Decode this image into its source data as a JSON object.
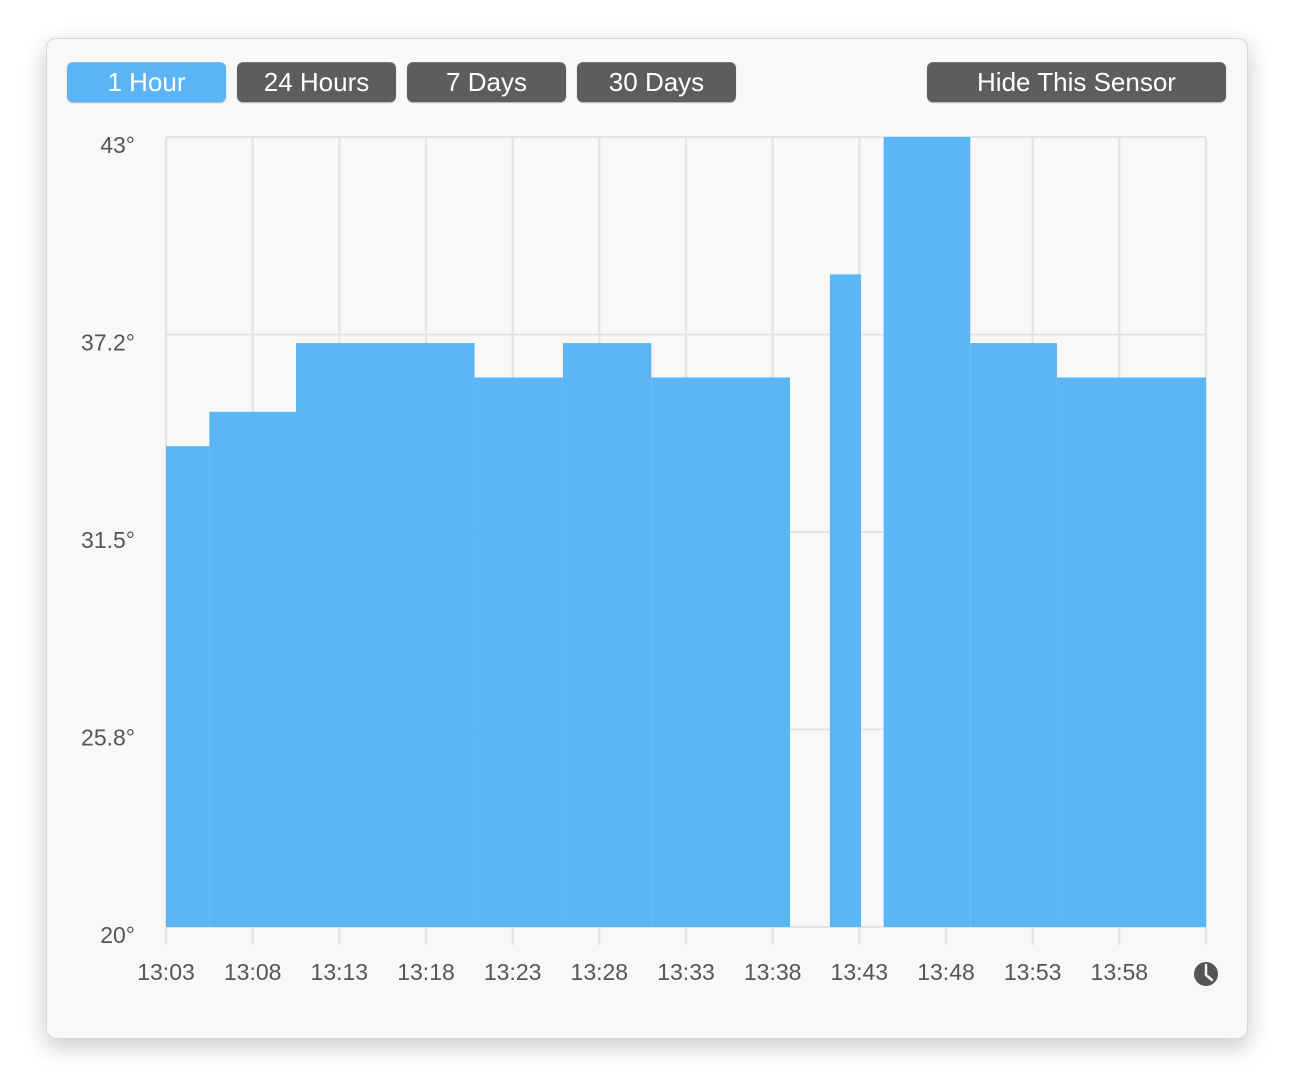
{
  "buttons": [
    "1 Hour",
    "24 Hours",
    "7 Days",
    "30 Days"
  ],
  "hide_button": "Hide This Sensor",
  "chart_data": {
    "type": "step-area",
    "color": "#5bb6f5",
    "series": [
      {
        "x_start": [
          783,
          785.5,
          790.5,
          800.8,
          805.9,
          811,
          821.3,
          824.4,
          829.4,
          834.4
        ],
        "x_end": [
          785.5,
          790.5,
          800.8,
          805.9,
          811,
          819,
          823.1,
          829.4,
          834.4,
          843
        ],
        "values": [
          34,
          35,
          37,
          36,
          37,
          36,
          39,
          43,
          37,
          36
        ]
      }
    ],
    "xlim": [
      783,
      843
    ],
    "ylim": [
      20,
      43
    ],
    "xticks": [
      {
        "value": 783,
        "label": "13:03"
      },
      {
        "value": 788,
        "label": "13:08"
      },
      {
        "value": 793,
        "label": "13:13"
      },
      {
        "value": 798,
        "label": "13:18"
      },
      {
        "value": 803,
        "label": "13:23"
      },
      {
        "value": 808,
        "label": "13:28"
      },
      {
        "value": 813,
        "label": "13:33"
      },
      {
        "value": 818,
        "label": "13:38"
      },
      {
        "value": 823,
        "label": "13:43"
      },
      {
        "value": 828,
        "label": "13:48"
      },
      {
        "value": 833,
        "label": "13:53"
      },
      {
        "value": 838,
        "label": "13:58"
      }
    ],
    "yticks": [
      {
        "value": 20,
        "label": "20°"
      },
      {
        "value": 25.75,
        "label": "25.8°"
      },
      {
        "value": 31.5,
        "label": "31.5°"
      },
      {
        "value": 37.25,
        "label": "37.2°"
      },
      {
        "value": 43,
        "label": "43°"
      }
    ],
    "grid": true
  }
}
